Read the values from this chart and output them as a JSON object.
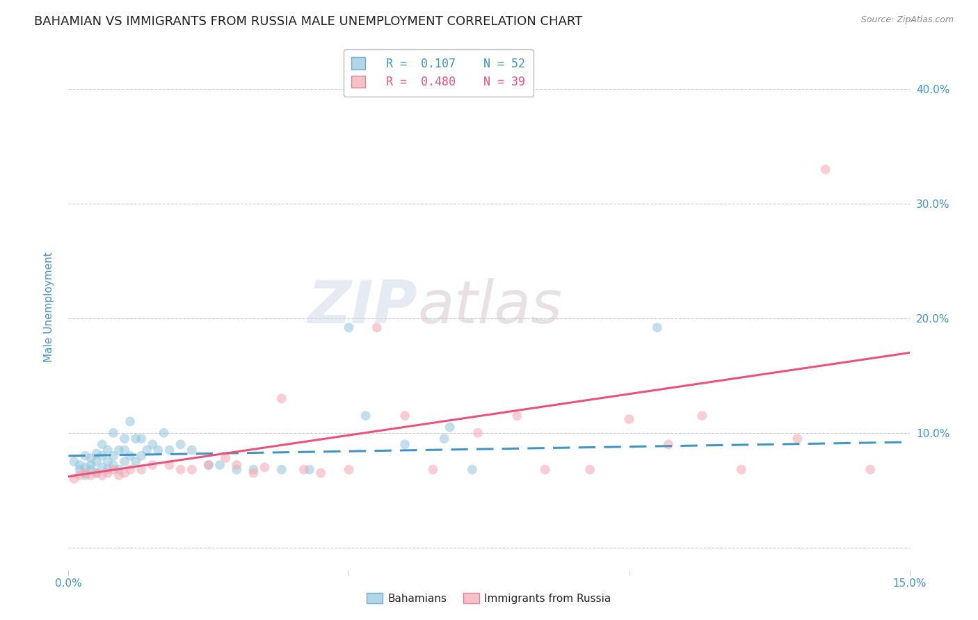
{
  "title": "BAHAMIAN VS IMMIGRANTS FROM RUSSIA MALE UNEMPLOYMENT CORRELATION CHART",
  "source": "Source: ZipAtlas.com",
  "ylabel": "Male Unemployment",
  "xlim": [
    0.0,
    0.15
  ],
  "ylim": [
    -0.02,
    0.44
  ],
  "yticks": [
    0.0,
    0.1,
    0.2,
    0.3,
    0.4
  ],
  "ytick_labels_right": [
    "",
    "10.0%",
    "20.0%",
    "30.0%",
    "40.0%"
  ],
  "color_blue": "#92c5de",
  "color_blue_line": "#4393c3",
  "color_blue_text": "#4393c3",
  "color_pink": "#f4a7b2",
  "color_pink_line": "#e8537a",
  "color_pink_text": "#e8537a",
  "watermark_zip": "ZIP",
  "watermark_atlas": "atlas",
  "blue_scatter_x": [
    0.001,
    0.002,
    0.002,
    0.003,
    0.003,
    0.003,
    0.004,
    0.004,
    0.004,
    0.005,
    0.005,
    0.005,
    0.006,
    0.006,
    0.006,
    0.007,
    0.007,
    0.007,
    0.008,
    0.008,
    0.008,
    0.009,
    0.009,
    0.01,
    0.01,
    0.01,
    0.011,
    0.011,
    0.012,
    0.012,
    0.013,
    0.013,
    0.014,
    0.015,
    0.016,
    0.017,
    0.018,
    0.02,
    0.022,
    0.025,
    0.027,
    0.03,
    0.033,
    0.038,
    0.043,
    0.05,
    0.053,
    0.06,
    0.067,
    0.068,
    0.072,
    0.105
  ],
  "blue_scatter_y": [
    0.075,
    0.068,
    0.072,
    0.07,
    0.063,
    0.08,
    0.068,
    0.072,
    0.078,
    0.065,
    0.075,
    0.082,
    0.07,
    0.08,
    0.09,
    0.068,
    0.075,
    0.085,
    0.072,
    0.08,
    0.1,
    0.068,
    0.085,
    0.075,
    0.085,
    0.095,
    0.08,
    0.11,
    0.075,
    0.095,
    0.08,
    0.095,
    0.085,
    0.09,
    0.085,
    0.1,
    0.085,
    0.09,
    0.085,
    0.072,
    0.072,
    0.068,
    0.068,
    0.068,
    0.068,
    0.192,
    0.115,
    0.09,
    0.095,
    0.105,
    0.068,
    0.192
  ],
  "pink_scatter_x": [
    0.001,
    0.002,
    0.003,
    0.004,
    0.005,
    0.006,
    0.007,
    0.008,
    0.009,
    0.01,
    0.011,
    0.013,
    0.015,
    0.018,
    0.02,
    0.022,
    0.025,
    0.028,
    0.03,
    0.033,
    0.035,
    0.038,
    0.042,
    0.045,
    0.05,
    0.055,
    0.06,
    0.065,
    0.073,
    0.08,
    0.085,
    0.093,
    0.1,
    0.107,
    0.113,
    0.12,
    0.13,
    0.135,
    0.143
  ],
  "pink_scatter_y": [
    0.06,
    0.063,
    0.065,
    0.063,
    0.065,
    0.063,
    0.065,
    0.068,
    0.063,
    0.065,
    0.068,
    0.068,
    0.072,
    0.072,
    0.068,
    0.068,
    0.072,
    0.078,
    0.072,
    0.065,
    0.07,
    0.13,
    0.068,
    0.065,
    0.068,
    0.192,
    0.115,
    0.068,
    0.1,
    0.115,
    0.068,
    0.068,
    0.112,
    0.09,
    0.115,
    0.068,
    0.095,
    0.33,
    0.068
  ],
  "blue_line_x": [
    0.0,
    0.15
  ],
  "blue_line_y": [
    0.08,
    0.092
  ],
  "pink_line_x": [
    0.0,
    0.15
  ],
  "pink_line_y": [
    0.062,
    0.17
  ],
  "title_color": "#222222",
  "title_fontsize": 13,
  "axis_color": "#4393c3",
  "grid_color": "#cccccc",
  "background_color": "#ffffff"
}
